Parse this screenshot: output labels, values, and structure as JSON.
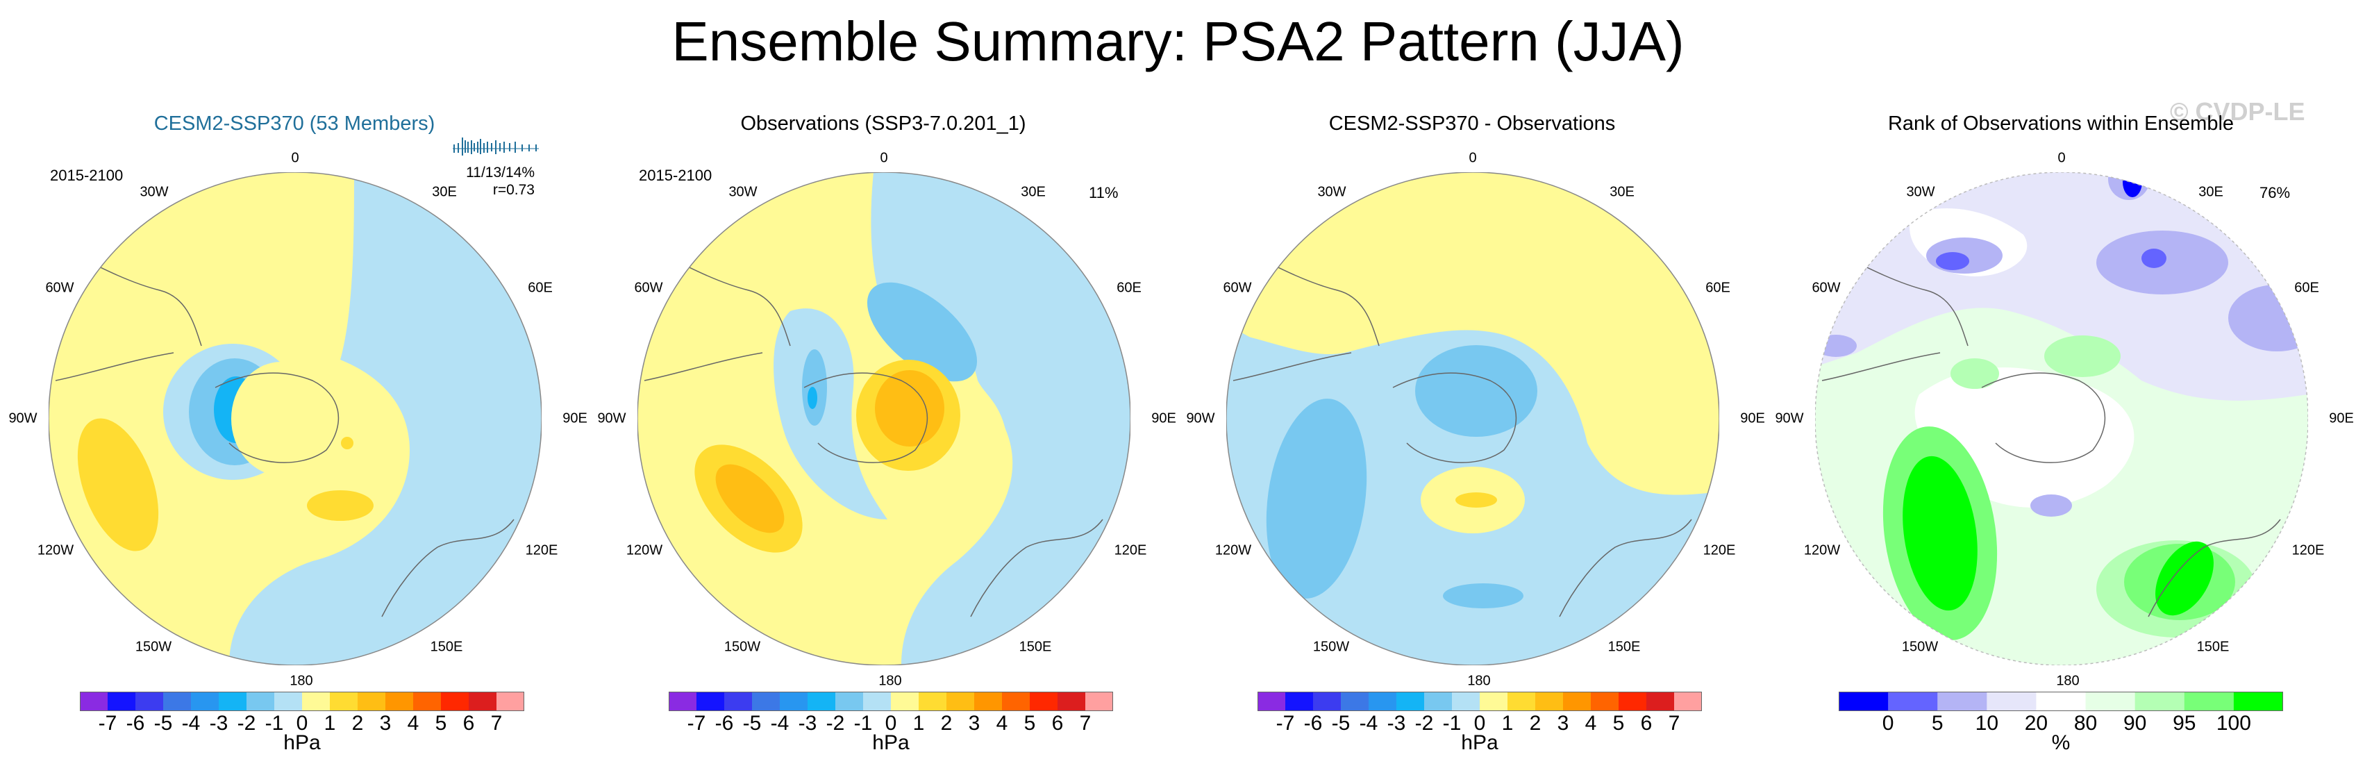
{
  "title": "Ensemble Summary: PSA2 Pattern (JJA)",
  "watermark": "© CVDP-LE",
  "longitude_labels": [
    "0",
    "30E",
    "60E",
    "90E",
    "120E",
    "150E",
    "180",
    "150W",
    "120W",
    "90W",
    "60W",
    "30W"
  ],
  "diff_colorbar": {
    "colors": [
      "#8a2be2",
      "#1414ff",
      "#3c3cf0",
      "#3c78e6",
      "#2896f0",
      "#14b4f5",
      "#78c8f0",
      "#b4e1f5",
      "#fffa96",
      "#ffdc32",
      "#ffbe14",
      "#ff9600",
      "#ff6400",
      "#ff2800",
      "#dc1e1e",
      "#ffa0a0"
    ],
    "labels": [
      "-7",
      "-6",
      "-5",
      "-4",
      "-3",
      "-2",
      "-1",
      "0",
      "1",
      "2",
      "3",
      "4",
      "5",
      "6",
      "7"
    ],
    "units": "hPa"
  },
  "rank_colorbar": {
    "colors": [
      "#0000ff",
      "#6464ff",
      "#b4b4f5",
      "#e6e6fa",
      "#ffffff",
      "#e6ffe6",
      "#b4ffb4",
      "#78ff78",
      "#00ff00"
    ],
    "labels": [
      "0",
      "5",
      "10",
      "20",
      "80",
      "90",
      "95",
      "100"
    ],
    "units": "%"
  },
  "panels": [
    {
      "title": "CESM2-SSP370 (53 Members)",
      "period": "2015-2100",
      "stats_line1": "11/13/14%",
      "stats_line2": "r=0.73"
    },
    {
      "title": "Observations (SSP3-7.0.201_1)",
      "period": "2015-2100",
      "pct": "11%"
    },
    {
      "title": "CESM2-SSP370 - Observations"
    },
    {
      "title": "Rank of Observations within Ensemble",
      "pct": "76%"
    }
  ]
}
